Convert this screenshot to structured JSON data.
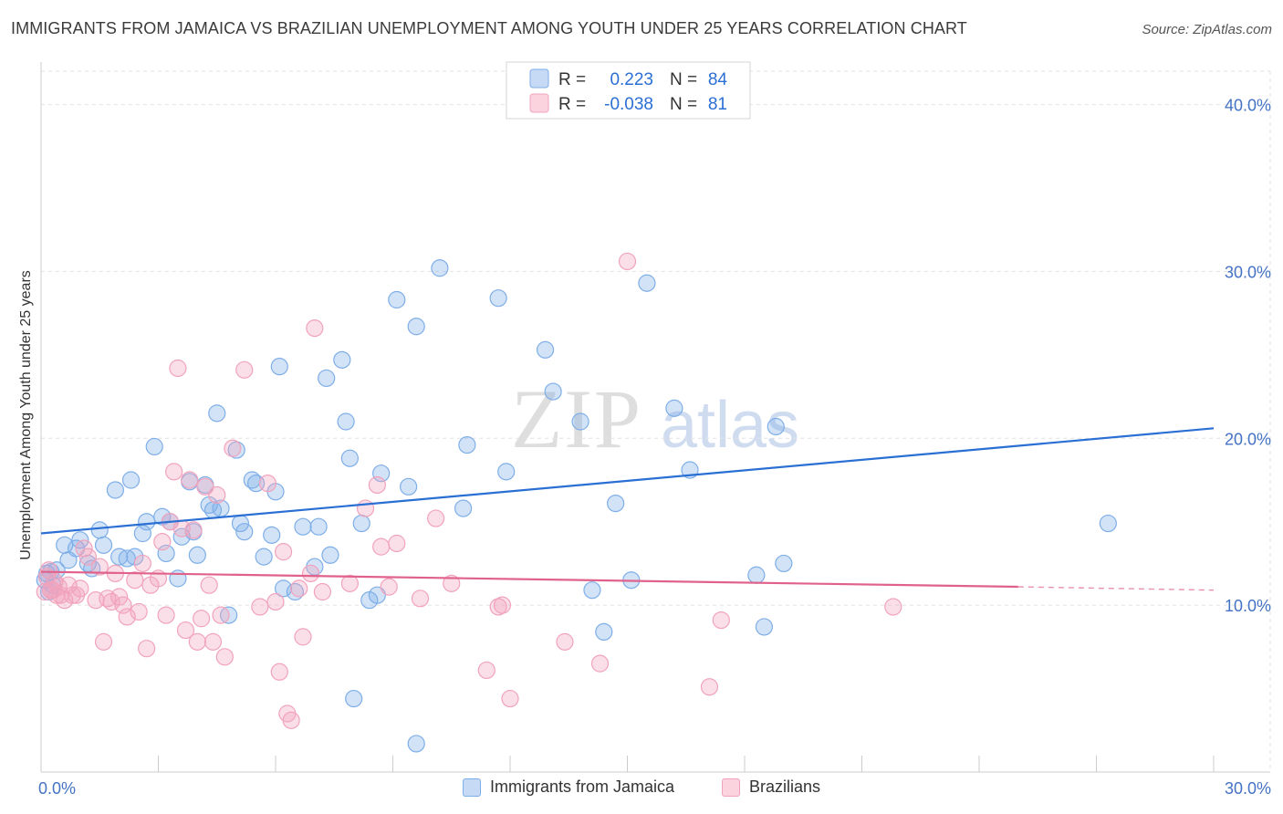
{
  "title": "IMMIGRANTS FROM JAMAICA VS BRAZILIAN UNEMPLOYMENT AMONG YOUTH UNDER 25 YEARS CORRELATION CHART",
  "source": "Source: ZipAtlas.com",
  "watermark": {
    "zip": "ZIP",
    "atlas": "atlas"
  },
  "legend_box": [
    {
      "r_label": "R =",
      "r_value": "0.223",
      "n_label": "N =",
      "n_value": "84"
    },
    {
      "r_label": "R =",
      "r_value": "-0.038",
      "n_label": "N =",
      "n_value": "81"
    }
  ],
  "chart_data": {
    "type": "scatter",
    "title": "IMMIGRANTS FROM JAMAICA VS BRAZILIAN UNEMPLOYMENT AMONG YOUTH UNDER 25 YEARS CORRELATION CHART",
    "xlabel": "",
    "ylabel": "Unemployment Among Youth under 25 years",
    "xlim": [
      0,
      30
    ],
    "ylim": [
      0,
      42
    ],
    "x_tick_labels": [
      "0.0%",
      "30.0%"
    ],
    "y_ticks": [
      10,
      20,
      30,
      40
    ],
    "y_tick_labels": [
      "10.0%",
      "20.0%",
      "30.0%",
      "40.0%"
    ],
    "grid": true,
    "legend_position": "top-center",
    "colors": {
      "jamaica": "#7eaee8",
      "jamaica_line": "#2a6fd4",
      "brazil": "#f2a3bc",
      "brazil_line": "#e0628b"
    },
    "series": [
      {
        "name": "Immigrants from Jamaica",
        "r": 0.223,
        "n": 84,
        "trend": {
          "x": [
            0,
            30
          ],
          "y": [
            14.3,
            20.6
          ]
        },
        "points": [
          [
            0.1,
            11.5
          ],
          [
            0.2,
            10.8
          ],
          [
            0.25,
            12.0
          ],
          [
            0.3,
            11.2
          ],
          [
            0.4,
            12.1
          ],
          [
            0.6,
            13.6
          ],
          [
            0.7,
            12.7
          ],
          [
            0.9,
            13.4
          ],
          [
            1.0,
            13.9
          ],
          [
            1.2,
            12.5
          ],
          [
            1.3,
            12.2
          ],
          [
            1.5,
            14.5
          ],
          [
            1.6,
            13.6
          ],
          [
            1.9,
            16.9
          ],
          [
            2.0,
            12.9
          ],
          [
            2.2,
            12.8
          ],
          [
            2.3,
            17.5
          ],
          [
            2.4,
            12.9
          ],
          [
            2.6,
            14.3
          ],
          [
            2.7,
            15.0
          ],
          [
            2.9,
            19.5
          ],
          [
            3.1,
            15.3
          ],
          [
            3.2,
            13.1
          ],
          [
            3.3,
            15.0
          ],
          [
            3.5,
            11.6
          ],
          [
            3.6,
            14.1
          ],
          [
            3.8,
            17.4
          ],
          [
            3.9,
            14.4
          ],
          [
            4.0,
            13.0
          ],
          [
            4.2,
            17.2
          ],
          [
            4.3,
            16.0
          ],
          [
            4.4,
            15.7
          ],
          [
            4.5,
            21.5
          ],
          [
            4.6,
            15.8
          ],
          [
            4.8,
            9.4
          ],
          [
            5.0,
            19.3
          ],
          [
            5.1,
            14.9
          ],
          [
            5.2,
            14.4
          ],
          [
            5.4,
            17.5
          ],
          [
            5.5,
            17.3
          ],
          [
            5.7,
            12.9
          ],
          [
            5.9,
            14.2
          ],
          [
            6.0,
            16.8
          ],
          [
            6.1,
            24.3
          ],
          [
            6.2,
            11.0
          ],
          [
            6.5,
            10.8
          ],
          [
            6.7,
            14.7
          ],
          [
            7.0,
            12.3
          ],
          [
            7.1,
            14.7
          ],
          [
            7.3,
            23.6
          ],
          [
            7.4,
            13.0
          ],
          [
            7.7,
            24.7
          ],
          [
            7.8,
            21.0
          ],
          [
            7.9,
            18.8
          ],
          [
            8.0,
            4.4
          ],
          [
            8.2,
            14.9
          ],
          [
            8.4,
            10.3
          ],
          [
            8.6,
            10.6
          ],
          [
            8.7,
            17.9
          ],
          [
            9.1,
            28.3
          ],
          [
            9.4,
            17.1
          ],
          [
            9.6,
            26.7
          ],
          [
            9.6,
            1.7
          ],
          [
            10.2,
            30.2
          ],
          [
            10.8,
            15.8
          ],
          [
            10.9,
            19.6
          ],
          [
            11.7,
            28.4
          ],
          [
            11.9,
            18.0
          ],
          [
            12.9,
            25.3
          ],
          [
            13.1,
            22.8
          ],
          [
            13.8,
            21.0
          ],
          [
            14.1,
            10.9
          ],
          [
            14.4,
            8.4
          ],
          [
            14.7,
            16.1
          ],
          [
            15.1,
            11.5
          ],
          [
            15.5,
            29.3
          ],
          [
            16.2,
            21.8
          ],
          [
            16.6,
            18.1
          ],
          [
            18.3,
            11.8
          ],
          [
            18.5,
            8.7
          ],
          [
            18.8,
            20.7
          ],
          [
            19.0,
            12.5
          ],
          [
            27.3,
            14.9
          ],
          [
            0.15,
            11.9
          ]
        ]
      },
      {
        "name": "Brazilians",
        "r": -0.038,
        "n": 81,
        "trend": {
          "x": [
            0,
            25
          ],
          "y": [
            12.0,
            11.1
          ]
        },
        "trend_dashed": {
          "x": [
            25,
            30
          ],
          "y": [
            11.1,
            10.9
          ]
        },
        "points": [
          [
            0.1,
            10.8
          ],
          [
            0.15,
            11.7
          ],
          [
            0.2,
            12.1
          ],
          [
            0.3,
            10.9
          ],
          [
            0.35,
            11.4
          ],
          [
            0.4,
            10.6
          ],
          [
            0.45,
            11.1
          ],
          [
            0.5,
            10.6
          ],
          [
            0.6,
            10.3
          ],
          [
            0.7,
            11.2
          ],
          [
            0.8,
            10.6
          ],
          [
            0.9,
            10.6
          ],
          [
            1.0,
            11.0
          ],
          [
            1.1,
            13.4
          ],
          [
            1.2,
            12.9
          ],
          [
            1.4,
            10.3
          ],
          [
            1.5,
            12.3
          ],
          [
            1.6,
            7.8
          ],
          [
            1.7,
            10.4
          ],
          [
            1.8,
            10.2
          ],
          [
            1.9,
            11.9
          ],
          [
            2.0,
            10.5
          ],
          [
            2.1,
            10.0
          ],
          [
            2.2,
            9.3
          ],
          [
            2.4,
            11.5
          ],
          [
            2.5,
            9.6
          ],
          [
            2.6,
            12.5
          ],
          [
            2.7,
            7.4
          ],
          [
            2.8,
            11.2
          ],
          [
            3.0,
            11.6
          ],
          [
            3.1,
            13.8
          ],
          [
            3.2,
            9.4
          ],
          [
            3.3,
            15.0
          ],
          [
            3.4,
            18.0
          ],
          [
            3.5,
            24.2
          ],
          [
            3.6,
            14.6
          ],
          [
            3.7,
            8.5
          ],
          [
            3.8,
            17.5
          ],
          [
            3.9,
            14.5
          ],
          [
            4.0,
            7.8
          ],
          [
            4.1,
            9.2
          ],
          [
            4.2,
            17.1
          ],
          [
            4.3,
            11.2
          ],
          [
            4.4,
            7.8
          ],
          [
            4.5,
            16.6
          ],
          [
            4.6,
            9.4
          ],
          [
            4.7,
            6.9
          ],
          [
            4.9,
            19.4
          ],
          [
            5.2,
            24.1
          ],
          [
            5.6,
            9.9
          ],
          [
            5.8,
            17.3
          ],
          [
            6.0,
            10.2
          ],
          [
            6.1,
            6.0
          ],
          [
            6.2,
            13.2
          ],
          [
            6.3,
            3.5
          ],
          [
            6.4,
            3.1
          ],
          [
            6.6,
            11.0
          ],
          [
            6.7,
            8.1
          ],
          [
            6.9,
            11.9
          ],
          [
            7.0,
            26.6
          ],
          [
            7.2,
            10.8
          ],
          [
            7.9,
            11.3
          ],
          [
            8.3,
            15.8
          ],
          [
            8.6,
            17.2
          ],
          [
            8.7,
            13.5
          ],
          [
            8.9,
            11.1
          ],
          [
            9.1,
            13.7
          ],
          [
            9.7,
            10.4
          ],
          [
            10.1,
            15.2
          ],
          [
            10.5,
            11.3
          ],
          [
            11.4,
            6.1
          ],
          [
            11.7,
            9.9
          ],
          [
            11.8,
            10.0
          ],
          [
            12.0,
            4.4
          ],
          [
            13.4,
            7.8
          ],
          [
            14.3,
            6.5
          ],
          [
            15.0,
            30.6
          ],
          [
            17.1,
            5.1
          ],
          [
            17.4,
            9.1
          ],
          [
            21.8,
            9.9
          ],
          [
            0.25,
            10.9
          ]
        ]
      }
    ]
  },
  "bottom_legend": [
    {
      "label": "Immigrants from Jamaica"
    },
    {
      "label": "Brazilians"
    }
  ]
}
